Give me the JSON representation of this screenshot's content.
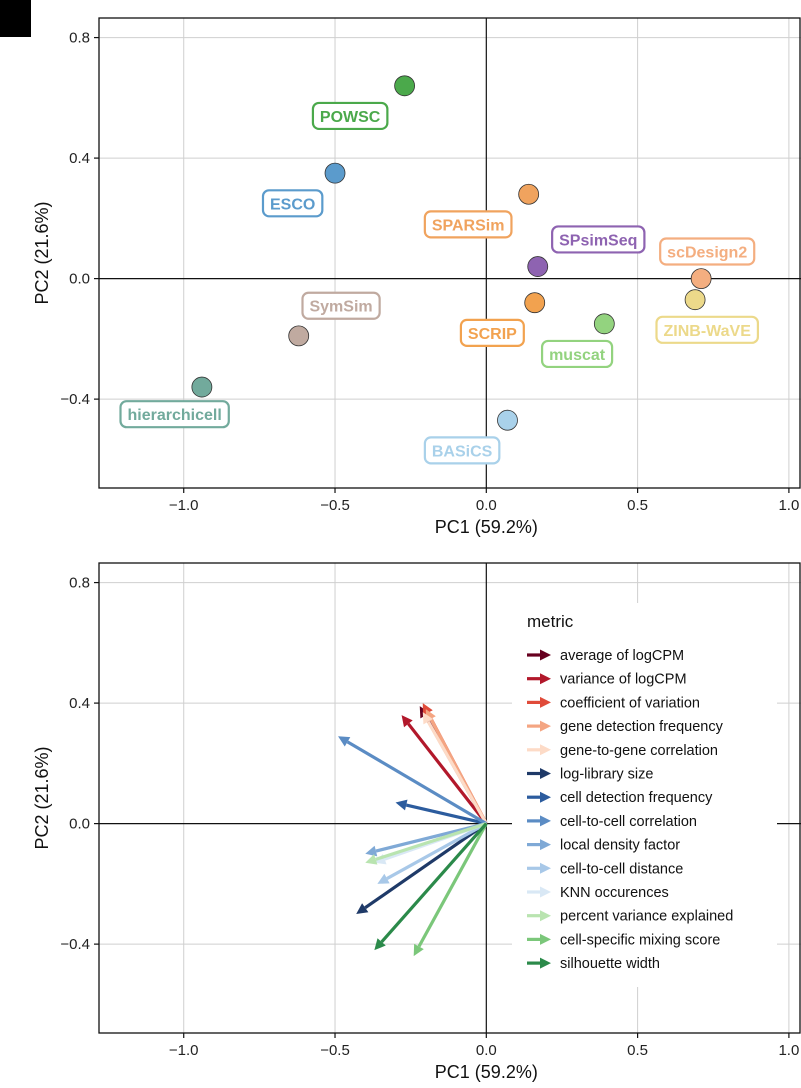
{
  "chart_data": [
    {
      "type": "scatter",
      "xlabel": "PC1 (59.2%)",
      "ylabel": "PC2 (21.6%)",
      "xlim": [
        -1.28,
        1.04
      ],
      "ylim": [
        -0.695,
        0.865
      ],
      "xticks": [
        -1.0,
        -0.5,
        0.0,
        0.5,
        1.0
      ],
      "xtick_labels": [
        "−1.0",
        "−0.5",
        "0.0",
        "0.5",
        "1.0"
      ],
      "yticks": [
        -0.4,
        0.0,
        0.4,
        0.8
      ],
      "ytick_labels": [
        "−0.4",
        "0.0",
        "0.4",
        "0.8"
      ],
      "grid": true,
      "points": [
        {
          "name": "POWSC",
          "x": -0.27,
          "y": 0.64,
          "color": "#4ba94b",
          "label_x": -0.45,
          "label_y": 0.54
        },
        {
          "name": "ESCO",
          "x": -0.5,
          "y": 0.35,
          "color": "#5b9bcc",
          "label_x": -0.64,
          "label_y": 0.25
        },
        {
          "name": "SPARSim",
          "x": 0.14,
          "y": 0.28,
          "color": "#f0a35e",
          "label_x": -0.06,
          "label_y": 0.18
        },
        {
          "name": "SPsimSeq",
          "x": 0.17,
          "y": 0.04,
          "color": "#8e63b1",
          "label_x": 0.37,
          "label_y": 0.13
        },
        {
          "name": "scDesign2",
          "x": 0.71,
          "y": 0.0,
          "color": "#f4ae80",
          "label_x": 0.73,
          "label_y": 0.09
        },
        {
          "name": "ZINB-WaVE",
          "x": 0.69,
          "y": -0.07,
          "color": "#ecd98a",
          "label_x": 0.73,
          "label_y": -0.17
        },
        {
          "name": "SymSim",
          "x": -0.62,
          "y": -0.19,
          "color": "#c0aaa0",
          "label_x": -0.48,
          "label_y": -0.09
        },
        {
          "name": "SCRIP",
          "x": 0.16,
          "y": -0.08,
          "color": "#f2a24f",
          "label_x": 0.02,
          "label_y": -0.18
        },
        {
          "name": "muscat",
          "x": 0.39,
          "y": -0.15,
          "color": "#93d37f",
          "label_x": 0.3,
          "label_y": -0.25
        },
        {
          "name": "hierarchicell",
          "x": -0.94,
          "y": -0.36,
          "color": "#72aa9c",
          "label_x": -1.03,
          "label_y": -0.45
        },
        {
          "name": "BASiCS",
          "x": 0.07,
          "y": -0.47,
          "color": "#a9d1ea",
          "label_x": -0.08,
          "label_y": -0.57
        }
      ]
    },
    {
      "type": "vector",
      "xlabel": "PC1 (59.2%)",
      "ylabel": "PC2 (21.6%)",
      "xlim": [
        -1.28,
        1.04
      ],
      "ylim": [
        -0.695,
        0.865
      ],
      "xticks": [
        -1.0,
        -0.5,
        0.0,
        0.5,
        1.0
      ],
      "xtick_labels": [
        "−1.0",
        "−0.5",
        "0.0",
        "0.5",
        "1.0"
      ],
      "yticks": [
        -0.4,
        0.0,
        0.4,
        0.8
      ],
      "ytick_labels": [
        "−0.4",
        "0.0",
        "0.4",
        "0.8"
      ],
      "grid": true,
      "legend_title": "metric",
      "legend_position": "right",
      "vectors": [
        {
          "name": "average of logCPM",
          "x": -0.22,
          "y": 0.39,
          "color": "#67001f"
        },
        {
          "name": "variance of logCPM",
          "x": -0.28,
          "y": 0.36,
          "color": "#b2182b"
        },
        {
          "name": "coefficient of variation",
          "x": -0.21,
          "y": 0.4,
          "color": "#e04b3a"
        },
        {
          "name": "gene detection frequency",
          "x": -0.2,
          "y": 0.38,
          "color": "#f4a582"
        },
        {
          "name": "gene-to-gene correlation",
          "x": -0.21,
          "y": 0.37,
          "color": "#fddbc7"
        },
        {
          "name": "log-library size",
          "x": -0.43,
          "y": -0.3,
          "color": "#1f3a68"
        },
        {
          "name": "cell detection frequency",
          "x": -0.3,
          "y": 0.07,
          "color": "#2c5c9e"
        },
        {
          "name": "cell-to-cell correlation",
          "x": -0.49,
          "y": 0.29,
          "color": "#5b8cc4"
        },
        {
          "name": "local density factor",
          "x": -0.4,
          "y": -0.1,
          "color": "#7fa9d6"
        },
        {
          "name": "cell-to-cell distance",
          "x": -0.36,
          "y": -0.2,
          "color": "#a8c8e8"
        },
        {
          "name": "KNN occurences",
          "x": -0.37,
          "y": -0.13,
          "color": "#d9e8f5"
        },
        {
          "name": "percent variance explained",
          "x": -0.4,
          "y": -0.13,
          "color": "#b9e4b0"
        },
        {
          "name": "cell-specific mixing score",
          "x": -0.24,
          "y": -0.44,
          "color": "#7bc77a"
        },
        {
          "name": "silhouette width",
          "x": -0.37,
          "y": -0.42,
          "color": "#2b8a4a"
        }
      ]
    }
  ]
}
